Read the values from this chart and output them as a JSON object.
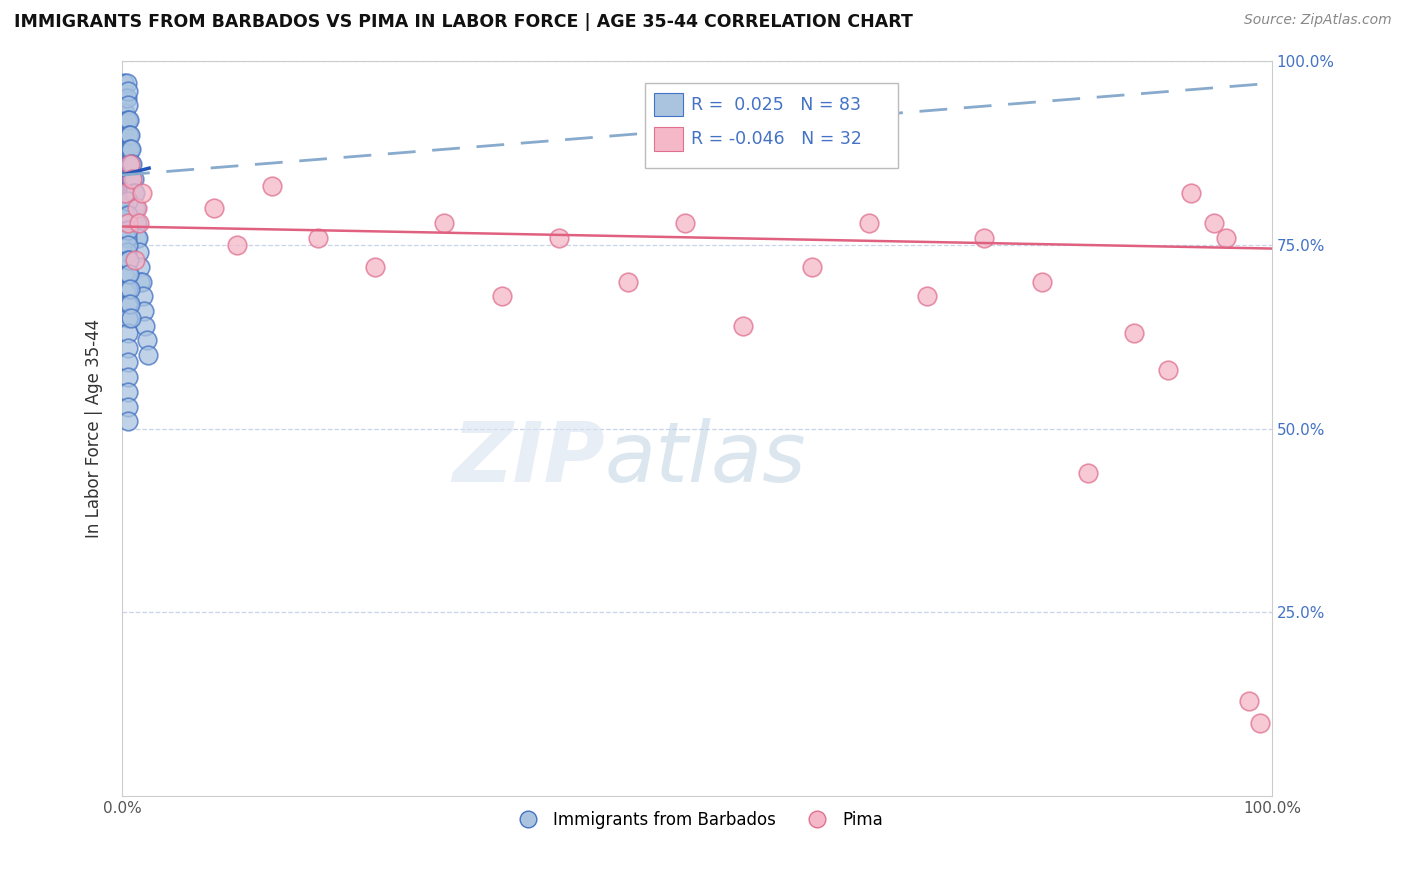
{
  "title": "IMMIGRANTS FROM BARBADOS VS PIMA IN LABOR FORCE | AGE 35-44 CORRELATION CHART",
  "source_text": "Source: ZipAtlas.com",
  "ylabel": "In Labor Force | Age 35-44",
  "xlim": [
    0,
    1
  ],
  "ylim": [
    0,
    1
  ],
  "legend_label1": "Immigrants from Barbados",
  "legend_label2": "Pima",
  "R1": 0.025,
  "N1": 83,
  "R2": -0.046,
  "N2": 32,
  "barbados_color": "#aac4e0",
  "barbados_edge_color": "#4472c4",
  "pima_color": "#f4b8c8",
  "pima_edge_color": "#e07090",
  "barbados_line_color": "#2255bb",
  "pima_line_color": "#e06080",
  "dashed_line_color": "#88aacc",
  "background_color": "#ffffff",
  "grid_color": "#c8d4e8",
  "barbados_x": [
    0.002,
    0.002,
    0.003,
    0.003,
    0.004,
    0.004,
    0.004,
    0.005,
    0.005,
    0.005,
    0.005,
    0.005,
    0.005,
    0.005,
    0.005,
    0.005,
    0.005,
    0.005,
    0.006,
    0.006,
    0.006,
    0.006,
    0.006,
    0.006,
    0.007,
    0.007,
    0.007,
    0.007,
    0.008,
    0.008,
    0.008,
    0.008,
    0.009,
    0.009,
    0.009,
    0.009,
    0.01,
    0.01,
    0.01,
    0.01,
    0.011,
    0.011,
    0.012,
    0.012,
    0.013,
    0.013,
    0.014,
    0.015,
    0.016,
    0.016,
    0.017,
    0.018,
    0.019,
    0.02,
    0.022,
    0.023,
    0.002,
    0.002,
    0.003,
    0.003,
    0.004,
    0.004,
    0.005,
    0.005,
    0.005,
    0.005,
    0.005,
    0.005,
    0.005,
    0.005,
    0.005,
    0.005,
    0.005,
    0.005,
    0.005,
    0.005,
    0.005,
    0.005,
    0.006,
    0.006,
    0.007,
    0.007,
    0.008
  ],
  "barbados_y": [
    0.97,
    0.95,
    0.93,
    0.91,
    0.97,
    0.95,
    0.92,
    0.96,
    0.94,
    0.92,
    0.9,
    0.88,
    0.87,
    0.86,
    0.85,
    0.84,
    0.83,
    0.82,
    0.92,
    0.9,
    0.88,
    0.86,
    0.84,
    0.82,
    0.9,
    0.88,
    0.86,
    0.84,
    0.88,
    0.86,
    0.84,
    0.82,
    0.86,
    0.84,
    0.82,
    0.8,
    0.84,
    0.82,
    0.8,
    0.78,
    0.82,
    0.8,
    0.8,
    0.78,
    0.78,
    0.76,
    0.76,
    0.74,
    0.72,
    0.7,
    0.7,
    0.68,
    0.66,
    0.64,
    0.62,
    0.6,
    0.8,
    0.78,
    0.79,
    0.77,
    0.76,
    0.74,
    0.81,
    0.79,
    0.77,
    0.75,
    0.73,
    0.71,
    0.69,
    0.67,
    0.65,
    0.63,
    0.61,
    0.59,
    0.57,
    0.55,
    0.53,
    0.51,
    0.73,
    0.71,
    0.69,
    0.67,
    0.65
  ],
  "pima_x": [
    0.003,
    0.005,
    0.007,
    0.009,
    0.011,
    0.013,
    0.015,
    0.017,
    0.08,
    0.1,
    0.13,
    0.17,
    0.22,
    0.28,
    0.33,
    0.38,
    0.44,
    0.49,
    0.54,
    0.6,
    0.65,
    0.7,
    0.75,
    0.8,
    0.84,
    0.88,
    0.91,
    0.93,
    0.95,
    0.96,
    0.98,
    0.99
  ],
  "pima_y": [
    0.82,
    0.78,
    0.86,
    0.84,
    0.73,
    0.8,
    0.78,
    0.82,
    0.8,
    0.75,
    0.83,
    0.76,
    0.72,
    0.78,
    0.68,
    0.76,
    0.7,
    0.78,
    0.64,
    0.72,
    0.78,
    0.68,
    0.76,
    0.7,
    0.44,
    0.63,
    0.58,
    0.82,
    0.78,
    0.76,
    0.13,
    0.1
  ],
  "barbados_trend_x": [
    0.0,
    0.025
  ],
  "barbados_trend_y": [
    0.845,
    0.855
  ],
  "dashed_trend_x": [
    0.0,
    1.0
  ],
  "dashed_trend_y": [
    0.845,
    0.97
  ],
  "pima_trend_x": [
    0.0,
    1.0
  ],
  "pima_trend_y": [
    0.775,
    0.745
  ]
}
